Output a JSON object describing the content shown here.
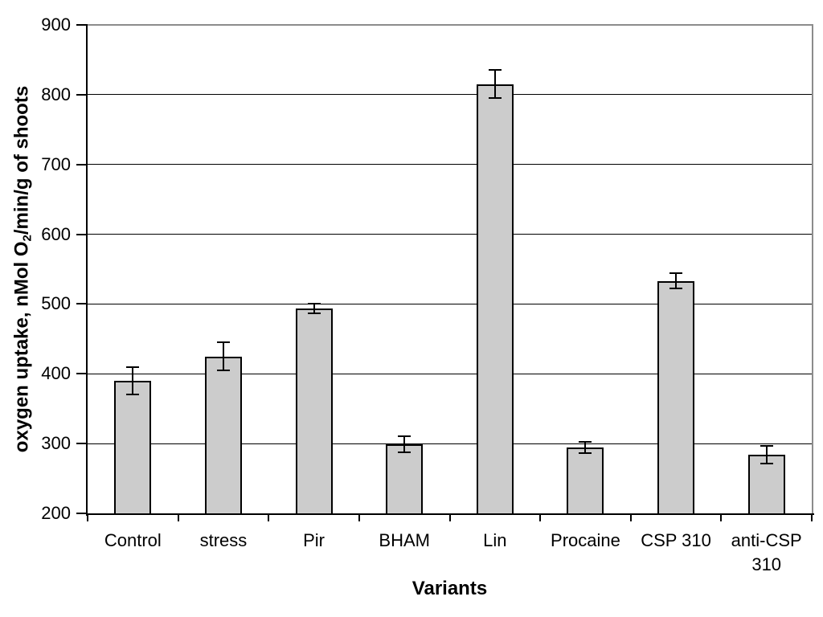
{
  "chart_data": {
    "type": "bar",
    "categories": [
      "Control",
      "stress",
      "Pir",
      "BHAM",
      "Lin",
      "Procaine",
      "CSP 310",
      "anti-CSP 310"
    ],
    "values": [
      390,
      425,
      494,
      299,
      815,
      294,
      533,
      284
    ],
    "errors": [
      20,
      20,
      7,
      12,
      20,
      8,
      11,
      13
    ],
    "error_bars": true,
    "xlabel": "Variants",
    "ylabel": "oxygen uptake, nMol O₂/min/g of shoots",
    "ylabel_parts": {
      "prefix": "oxygen uptake, nMol O",
      "subscript": "2",
      "suffix": "/min/g of shoots"
    },
    "ylim": [
      200,
      900
    ],
    "yticks": [
      200,
      300,
      400,
      500,
      600,
      700,
      800,
      900
    ],
    "grid": "horizontal",
    "legend": "none",
    "colors": {
      "bar_fill": "#cccccc",
      "bar_border": "#000000",
      "gridline": "#000000",
      "axis": "#000000",
      "plot_border": "#8c8c8c",
      "background": "#ffffff",
      "text": "#000000"
    }
  }
}
